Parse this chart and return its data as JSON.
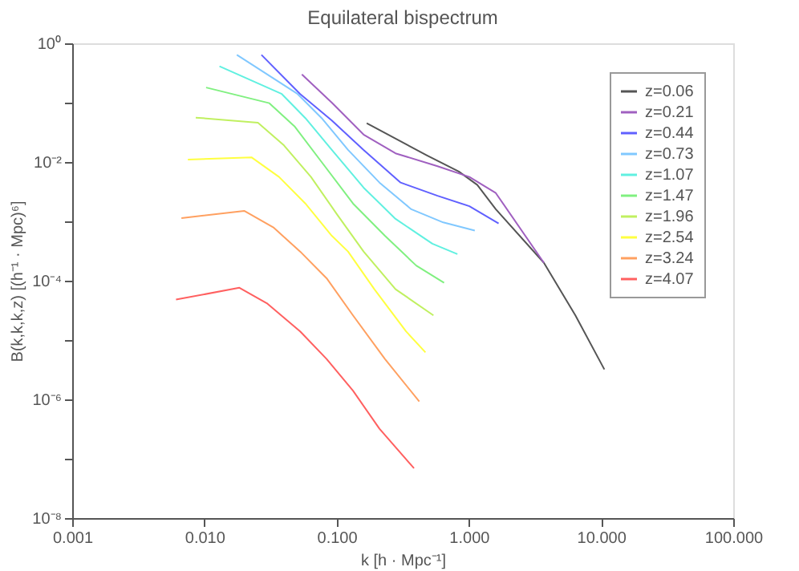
{
  "chart_data": {
    "type": "line",
    "title": "Equilateral bispectrum",
    "xlabel": "k [h · Mpc⁻¹]",
    "ylabel": "B(k,k,k,z) [(h⁻¹ · Mpc)⁶]",
    "log": "xy",
    "grid": false,
    "legend": "top right",
    "line_style": "solid",
    "marker": "none",
    "xlim": [
      0.001,
      100
    ],
    "ylim": [
      1e-08,
      1
    ],
    "xticks": [
      {
        "value": 0.001,
        "label": "0.001"
      },
      {
        "value": 0.01,
        "label": "0.010"
      },
      {
        "value": 0.1,
        "label": "0.100"
      },
      {
        "value": 1,
        "label": "1.000"
      },
      {
        "value": 10,
        "label": "10.000"
      },
      {
        "value": 100,
        "label": "100.000"
      }
    ],
    "yticks": [
      {
        "value": 1e-08,
        "label": "10⁻⁸"
      },
      {
        "value": 1e-07,
        "label": null
      },
      {
        "value": 1e-06,
        "label": "10⁻⁶"
      },
      {
        "value": 1e-05,
        "label": null
      },
      {
        "value": 0.0001,
        "label": "10⁻⁴"
      },
      {
        "value": 0.001,
        "label": null
      },
      {
        "value": 0.01,
        "label": "10⁻²"
      },
      {
        "value": 0.1,
        "label": null
      },
      {
        "value": 1,
        "label": "10⁰"
      }
    ],
    "series": [
      {
        "name": "z=0.06",
        "color": "#555555",
        "x": [
          0.169,
          0.48,
          0.84,
          1.16,
          1.6,
          3.7,
          6.4,
          10.6
        ],
        "values": [
          0.045,
          0.013,
          0.0069,
          0.0041,
          0.0016,
          0.0002,
          2.6e-05,
          3.2e-06
        ]
      },
      {
        "name": "z=0.21",
        "color": "#a060c0",
        "x": [
          0.0546,
          0.092,
          0.16,
          0.279,
          0.58,
          1.01,
          1.6,
          3.7
        ],
        "values": [
          0.3,
          0.1,
          0.029,
          0.014,
          0.0085,
          0.0056,
          0.003,
          0.0002
        ]
      },
      {
        "name": "z=0.44",
        "color": "#6060ff",
        "x": [
          0.027,
          0.053,
          0.092,
          0.16,
          0.305,
          0.58,
          1.01,
          1.68
        ],
        "values": [
          0.64,
          0.14,
          0.05,
          0.016,
          0.0045,
          0.0027,
          0.0018,
          0.00092
        ]
      },
      {
        "name": "z=0.73",
        "color": "#80c8ff",
        "x": [
          0.0176,
          0.0507,
          0.077,
          0.122,
          0.211,
          0.367,
          0.64,
          1.11
        ],
        "values": [
          0.64,
          0.14,
          0.055,
          0.016,
          0.0045,
          0.0016,
          0.00096,
          0.0007
        ]
      },
      {
        "name": "z=1.07",
        "color": "#60f0e0",
        "x": [
          0.013,
          0.0385,
          0.058,
          0.092,
          0.16,
          0.279,
          0.53,
          0.82
        ],
        "values": [
          0.41,
          0.14,
          0.055,
          0.016,
          0.0037,
          0.0011,
          0.00042,
          0.00028
        ]
      },
      {
        "name": "z=1.47",
        "color": "#80f080",
        "x": [
          0.0103,
          0.031,
          0.048,
          0.077,
          0.133,
          0.232,
          0.4,
          0.65
        ],
        "values": [
          0.18,
          0.098,
          0.04,
          0.01,
          0.002,
          0.00057,
          0.00018,
          9.2e-05
        ]
      },
      {
        "name": "z=1.96",
        "color": "#c0f060",
        "x": [
          0.0086,
          0.0254,
          0.04,
          0.064,
          0.101,
          0.16,
          0.279,
          0.54
        ],
        "values": [
          0.056,
          0.046,
          0.019,
          0.0056,
          0.0013,
          0.00031,
          7.2e-05,
          2.6e-05
        ]
      },
      {
        "name": "z=2.54",
        "color": "#ffff40",
        "x": [
          0.0075,
          0.0227,
          0.0367,
          0.058,
          0.092,
          0.122,
          0.193,
          0.335,
          0.47
        ],
        "values": [
          0.011,
          0.012,
          0.0056,
          0.002,
          0.00057,
          0.00031,
          7.2e-05,
          1.4e-05,
          6.2e-06
        ]
      },
      {
        "name": "z=3.24",
        "color": "#ffa060",
        "x": [
          0.0067,
          0.02,
          0.0335,
          0.053,
          0.084,
          0.133,
          0.232,
          0.422
        ],
        "values": [
          0.00113,
          0.0015,
          0.00078,
          0.00031,
          0.00011,
          2.6e-05,
          4.8e-06,
          9.2e-07
        ]
      },
      {
        "name": "z=4.07",
        "color": "#ff6060",
        "x": [
          0.0061,
          0.0184,
          0.03,
          0.053,
          0.084,
          0.133,
          0.211,
          0.385
        ],
        "values": [
          4.8e-05,
          7.6e-05,
          4.1e-05,
          1.4e-05,
          4.8e-06,
          1.4e-06,
          3.2e-07,
          6.9e-08
        ]
      }
    ]
  }
}
